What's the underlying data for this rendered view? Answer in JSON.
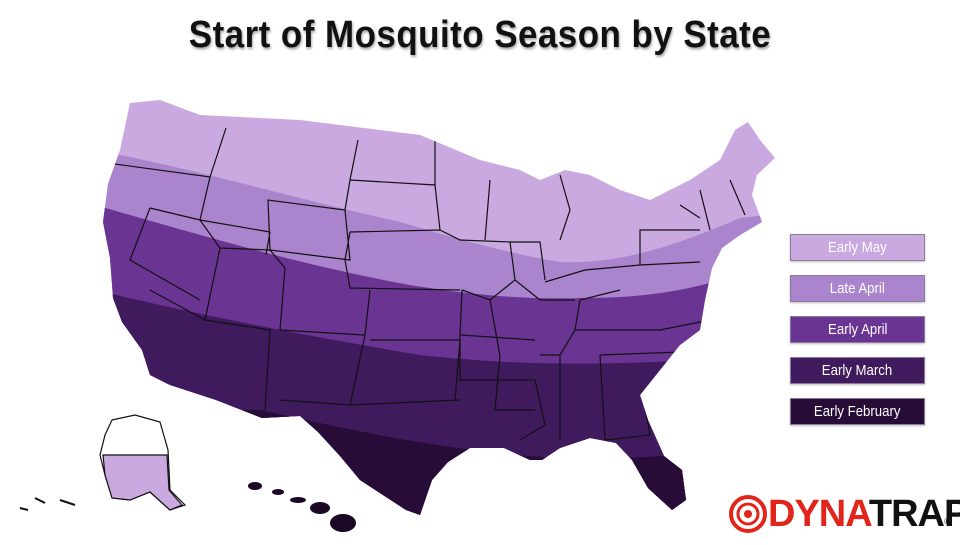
{
  "title": "Start of Mosquito Season by State",
  "legend": [
    {
      "label": "Early May",
      "color": "#c9a9df"
    },
    {
      "label": "Late April",
      "color": "#aa84cc"
    },
    {
      "label": "Early April",
      "color": "#6a3493"
    },
    {
      "label": "Early March",
      "color": "#3f1a5d"
    },
    {
      "label": "Early February",
      "color": "#260c37"
    }
  ],
  "brand": {
    "part1": "DYNA",
    "part2": "TRAP",
    "registered": "®"
  },
  "colors": {
    "alaska_white": "#ffffff",
    "hawaii": "#1a0825",
    "state_border": "#111111",
    "brand_red": "#e1251b"
  }
}
